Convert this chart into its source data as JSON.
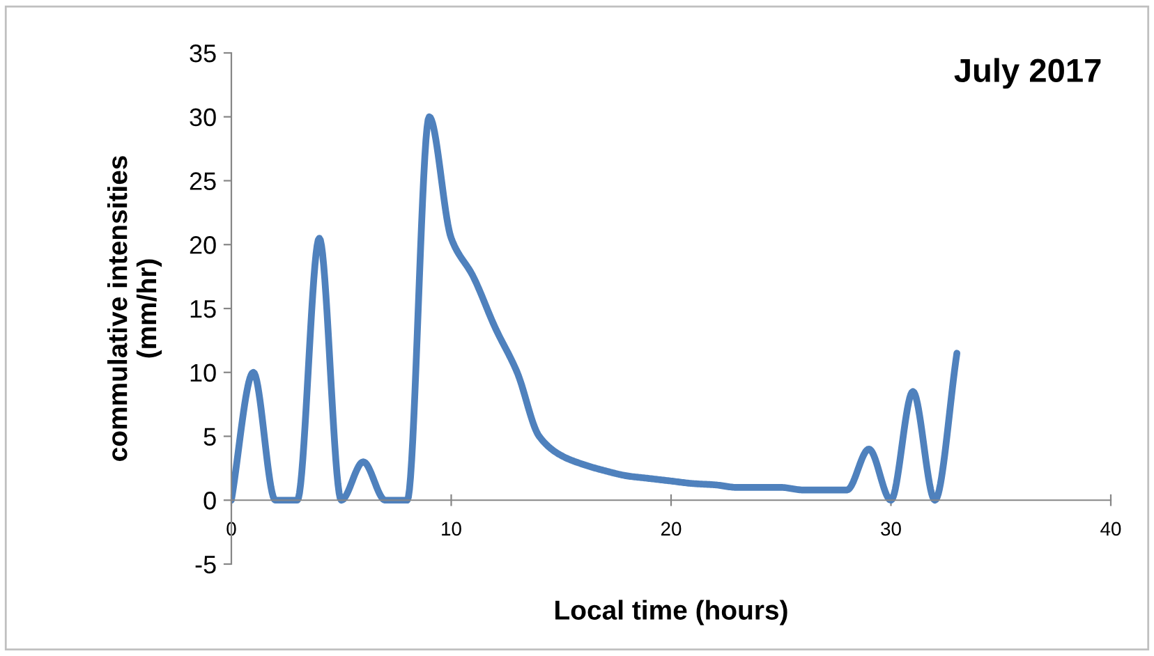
{
  "chart_data": {
    "type": "line",
    "title": "July 2017",
    "xlabel": "Local time (hours)",
    "ylabel": "commulative intensities\n(mm/hr)",
    "x": [
      0,
      1,
      2,
      3,
      4,
      5,
      6,
      7,
      8,
      9,
      10,
      11,
      12,
      13,
      14,
      15,
      16,
      17,
      18,
      19,
      20,
      21,
      22,
      23,
      24,
      25,
      26,
      27,
      28,
      29,
      30,
      31,
      32,
      33
    ],
    "series": [
      {
        "color": "#4f81bd",
        "values": [
          0,
          10,
          0,
          0,
          20.5,
          0,
          3,
          0,
          0,
          30,
          20.5,
          17.5,
          13.5,
          10,
          5,
          3.5,
          2.8,
          2.3,
          1.9,
          1.7,
          1.5,
          1.3,
          1.2,
          1,
          1,
          1,
          0.8,
          0.8,
          0.8,
          4,
          0,
          8.5,
          0,
          11.5
        ]
      }
    ],
    "xlim": [
      0,
      40
    ],
    "xticks": [
      0,
      10,
      20,
      30,
      40
    ],
    "ylim": [
      -5,
      35
    ],
    "yticks": [
      -5,
      0,
      5,
      10,
      15,
      20,
      25,
      30,
      35
    ],
    "grid": false,
    "legend": false,
    "marker": "none",
    "line_style": "solid"
  }
}
